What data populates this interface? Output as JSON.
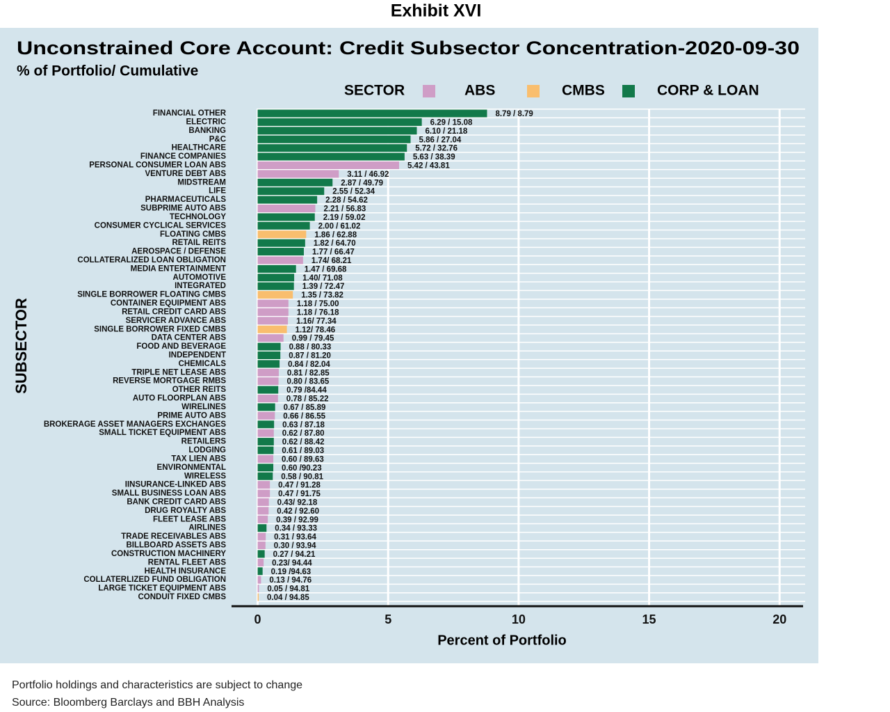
{
  "exhibit": "Exhibit XVI",
  "chart_data": {
    "type": "bar",
    "orientation": "horizontal",
    "title": "Unconstrained Core Account: Credit Subsector Concentration-2020-09-30",
    "subtitle": "% of Portfolio/ Cumulative",
    "legend_title": "SECTOR",
    "legend": [
      {
        "name": "ABS",
        "color": "#cf9dc6"
      },
      {
        "name": "CMBS",
        "color": "#f9be6e"
      },
      {
        "name": "CORP & LOAN",
        "color": "#12794a"
      }
    ],
    "x_label": "Percent of Portfolio",
    "y_label": "SUBSECTOR",
    "categories": [
      "FINANCIAL OTHER",
      "ELECTRIC",
      "BANKING",
      "P&C",
      "HEALTHCARE",
      "FINANCE COMPANIES",
      "PERSONAL CONSUMER LOAN ABS",
      "VENTURE DEBT ABS",
      "MIDSTREAM",
      "LIFE",
      "PHARMACEUTICALS",
      "SUBPRIME AUTO ABS",
      "TECHNOLOGY",
      "CONSUMER CYCLICAL SERVICES",
      "FLOATING CMBS",
      "RETAIL REITS",
      "AEROSPACE / DEFENSE",
      "COLLATERALIZED LOAN OBLIGATION",
      "MEDIA ENTERTAINMENT",
      "AUTOMOTIVE",
      "INTEGRATED",
      "SINGLE BORROWER FLOATING CMBS",
      "CONTAINER EQUIPMENT ABS",
      "RETAIL CREDIT CARD ABS",
      "SERVICER ADVANCE ABS",
      "SINGLE BORROWER FIXED CMBS",
      "DATA CENTER ABS",
      "FOOD AND BEVERAGE",
      "INDEPENDENT",
      "CHEMICALS",
      "TRIPLE NET LEASE ABS",
      "REVERSE MORTGAGE RMBS",
      "OTHER REITS",
      "AUTO FLOORPLAN ABS",
      "WIRELINES",
      "PRIME AUTO ABS",
      "BROKERAGE ASSET MANAGERS EXCHANGES",
      "SMALL TICKET EQUIPMENT ABS",
      "RETAILERS",
      "LODGING",
      "TAX LIEN ABS",
      "ENVIRONMENTAL",
      "WIRELESS",
      "IINSURANCE-LINKED ABS",
      "SMALL BUSINESS LOAN ABS",
      "BANK CREDIT CARD ABS",
      "DRUG ROYALTY ABS",
      "FLEET LEASE ABS",
      "AIRLINES",
      "TRADE RECEIVABLES ABS",
      "BILLBOARD ASSETS ABS",
      "CONSTRUCTION MACHINERY",
      "RENTAL FLEET ABS",
      "HEALTH INSURANCE",
      "COLLATERLIZED FUND OBLIGATION",
      "LARGE TICKET EQUIPMENT ABS",
      "CONDUIT FIXED CMBS"
    ],
    "values": [
      8.79,
      6.29,
      6.1,
      5.86,
      5.72,
      5.63,
      5.42,
      3.11,
      2.87,
      2.55,
      2.28,
      2.21,
      2.19,
      2.0,
      1.86,
      1.82,
      1.77,
      1.74,
      1.47,
      1.4,
      1.39,
      1.35,
      1.18,
      1.18,
      1.16,
      1.12,
      0.99,
      0.88,
      0.87,
      0.84,
      0.81,
      0.8,
      0.79,
      0.78,
      0.67,
      0.66,
      0.63,
      0.62,
      0.62,
      0.61,
      0.6,
      0.6,
      0.58,
      0.47,
      0.47,
      0.43,
      0.42,
      0.39,
      0.34,
      0.31,
      0.3,
      0.27,
      0.23,
      0.19,
      0.13,
      0.05,
      0.04
    ],
    "value_labels": [
      "8.79 / 8.79",
      "6.29 / 15.08",
      "6.10 / 21.18",
      "5.86 / 27.04",
      "5.72 / 32.76",
      "5.63 / 38.39",
      "5.42 / 43.81",
      "3.11 / 46.92",
      "2.87 / 49.79",
      "2.55 / 52.34",
      "2.28 / 54.62",
      "2.21 / 56.83",
      "2.19 / 59.02",
      "2.00 / 61.02",
      "1.86 / 62.88",
      "1.82 / 64.70",
      "1.77 / 66.47",
      "1.74/ 68.21",
      "1.47 / 69.68",
      "1.40/ 71.08",
      "1.39 / 72.47",
      "1.35 / 73.82",
      "1.18 / 75.00",
      "1.18 / 76.18",
      "1.16/ 77.34",
      "1.12/ 78.46",
      "0.99 / 79.45",
      "0.88 / 80.33",
      "0.87 / 81.20",
      "0.84 / 82.04",
      "0.81 / 82.85",
      "0.80 / 83.65",
      "0.79 /84.44",
      "0.78 / 85.22",
      "0.67 / 85.89",
      "0.66 / 86.55",
      "0.63 / 87.18",
      "0.62 / 87.80",
      "0.62 / 88.42",
      "0.61 / 89.03",
      "0.60 / 89.63",
      "0.60 /90.23",
      "0.58 / 90.81",
      "0.47 / 91.28",
      "0.47 / 91.75",
      "0.43/ 92.18",
      "0.42 / 92.60",
      "0.39 / 92.99",
      "0.34 / 93.33",
      "0.31 / 93.64",
      "0.30 / 93.94",
      "0.27 / 94.21",
      "0.23/ 94.44",
      "0.19 /94.63",
      "0.13 / 94.76",
      "0.05 / 94.81",
      "0.04 / 94.85"
    ],
    "colors": [
      "#12794a",
      "#12794a",
      "#12794a",
      "#12794a",
      "#12794a",
      "#12794a",
      "#cf9dc6",
      "#cf9dc6",
      "#12794a",
      "#12794a",
      "#12794a",
      "#cf9dc6",
      "#12794a",
      "#12794a",
      "#f9be6e",
      "#12794a",
      "#12794a",
      "#cf9dc6",
      "#12794a",
      "#12794a",
      "#12794a",
      "#f9be6e",
      "#cf9dc6",
      "#cf9dc6",
      "#cf9dc6",
      "#f9be6e",
      "#cf9dc6",
      "#12794a",
      "#12794a",
      "#12794a",
      "#cf9dc6",
      "#cf9dc6",
      "#12794a",
      "#cf9dc6",
      "#12794a",
      "#cf9dc6",
      "#12794a",
      "#cf9dc6",
      "#12794a",
      "#12794a",
      "#cf9dc6",
      "#12794a",
      "#12794a",
      "#cf9dc6",
      "#cf9dc6",
      "#cf9dc6",
      "#cf9dc6",
      "#cf9dc6",
      "#12794a",
      "#cf9dc6",
      "#cf9dc6",
      "#12794a",
      "#cf9dc6",
      "#12794a",
      "#cf9dc6",
      "#cf9dc6",
      "#f9be6e"
    ],
    "xlim": [
      -1,
      20.9
    ],
    "xticks": [
      0,
      5,
      10,
      15,
      20
    ],
    "grid": true
  },
  "footnotes": [
    "Portfolio holdings and characteristics are subject to change",
    "Source: Bloomberg Barclays and BBH Analysis"
  ]
}
